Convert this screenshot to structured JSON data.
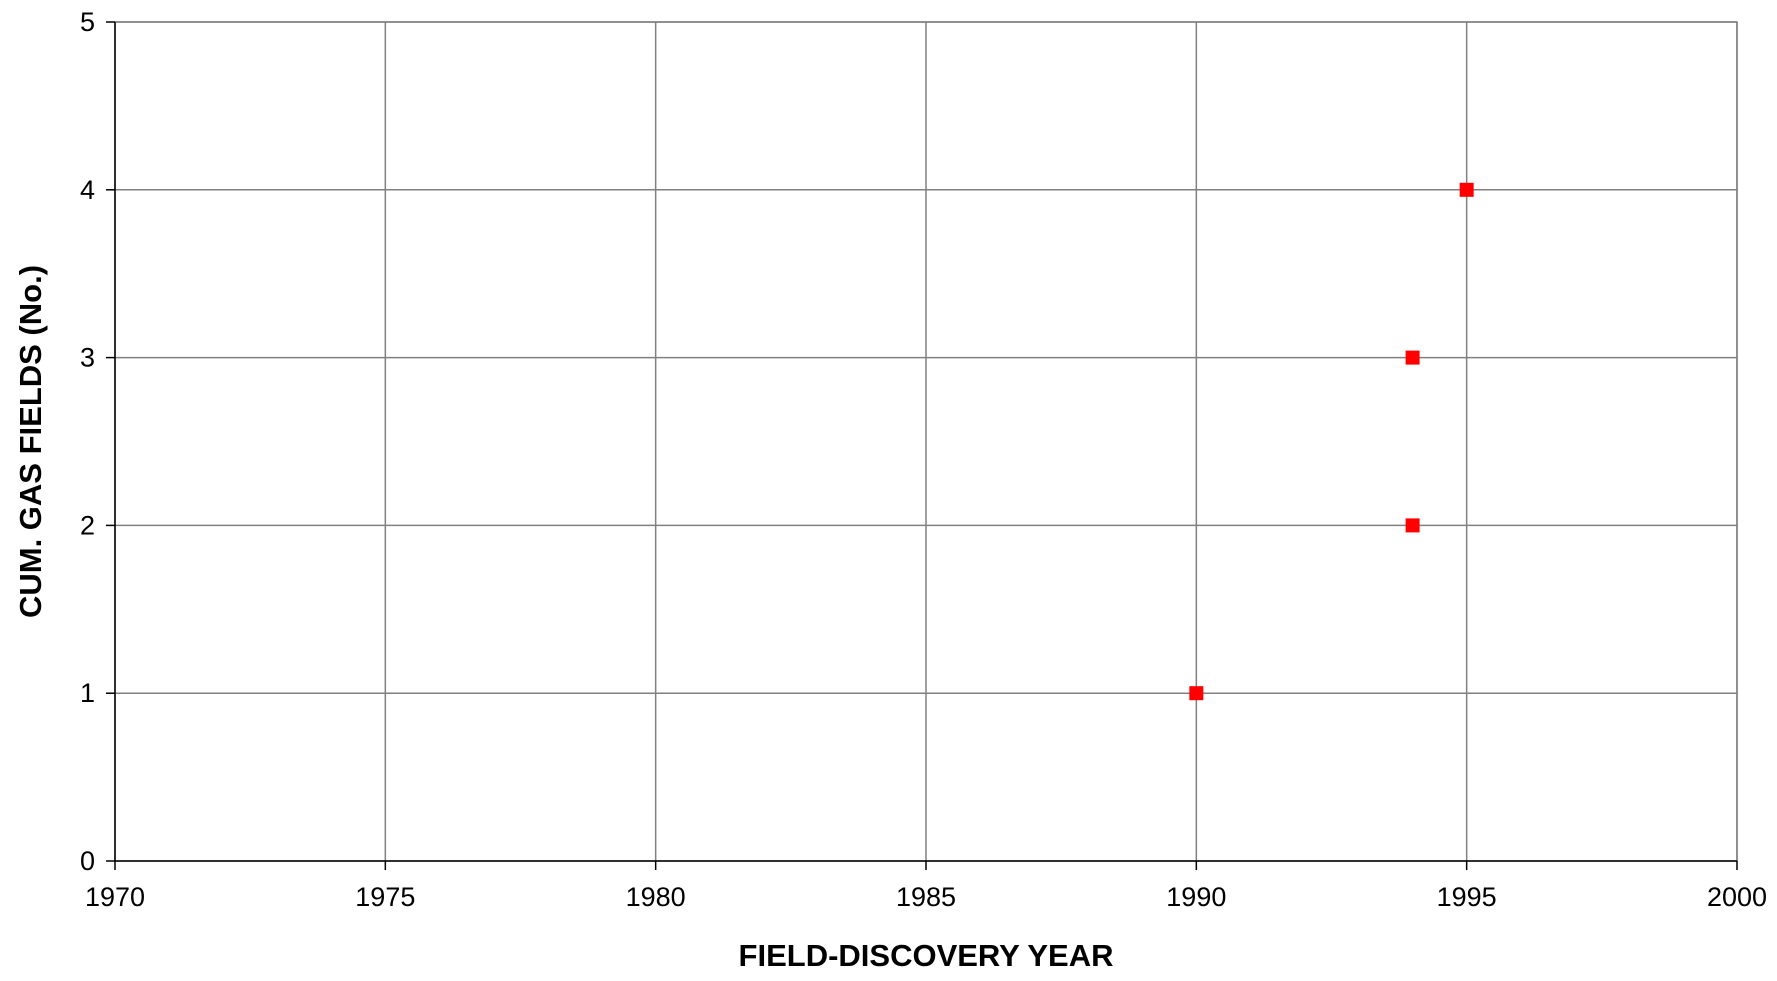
{
  "chart_data": {
    "type": "scatter",
    "title": "",
    "xlabel": "FIELD-DISCOVERY YEAR",
    "ylabel": "CUM. GAS FIELDS (No.)",
    "xlim": [
      1970,
      2000
    ],
    "ylim": [
      0,
      5
    ],
    "x_ticks": [
      "1970",
      "1975",
      "1980",
      "1985",
      "1990",
      "1995",
      "2000"
    ],
    "y_ticks": [
      "0",
      "1",
      "2",
      "3",
      "4",
      "5"
    ],
    "grid": true,
    "legend": "none",
    "marker_color": "#ff0000",
    "marker_shape": "square",
    "series": [
      {
        "x": [
          1990,
          1994,
          1994,
          1995
        ],
        "y": [
          1,
          2,
          3,
          4
        ]
      }
    ]
  }
}
